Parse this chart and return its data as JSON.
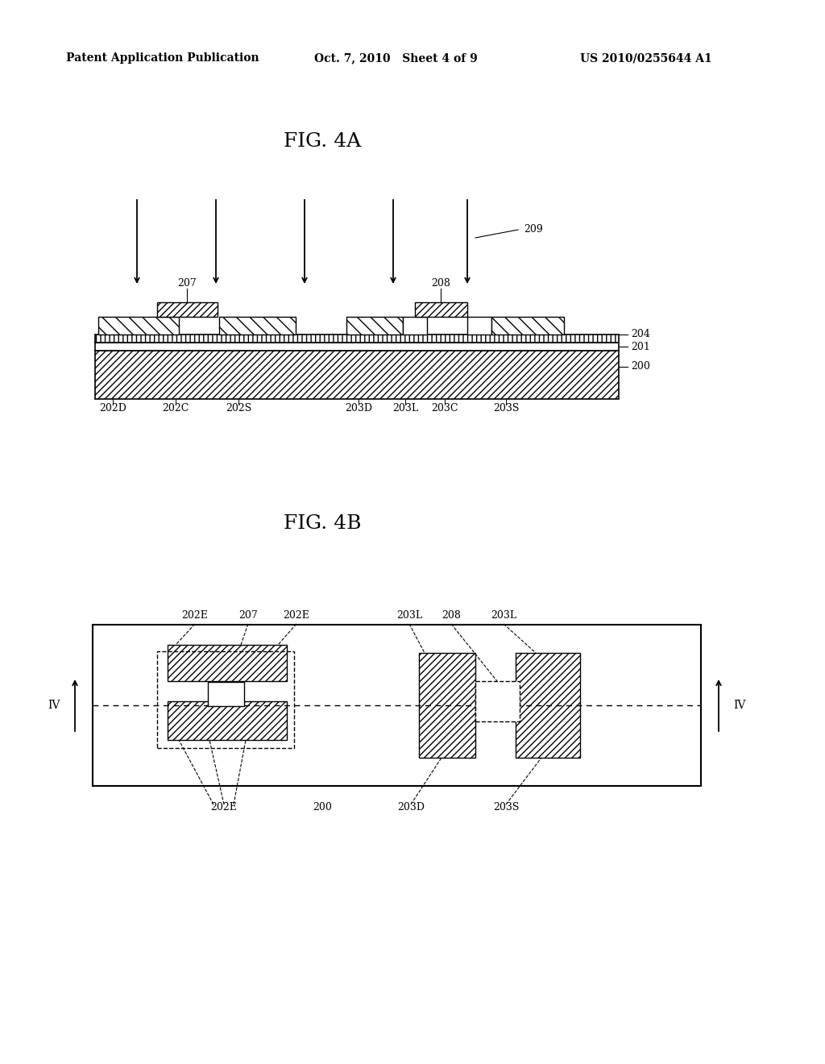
{
  "header_left": "Patent Application Publication",
  "header_mid": "Oct. 7, 2010   Sheet 4 of 9",
  "header_right": "US 2010/0255644 A1",
  "bg_color": "#ffffff",
  "line_color": "#000000"
}
